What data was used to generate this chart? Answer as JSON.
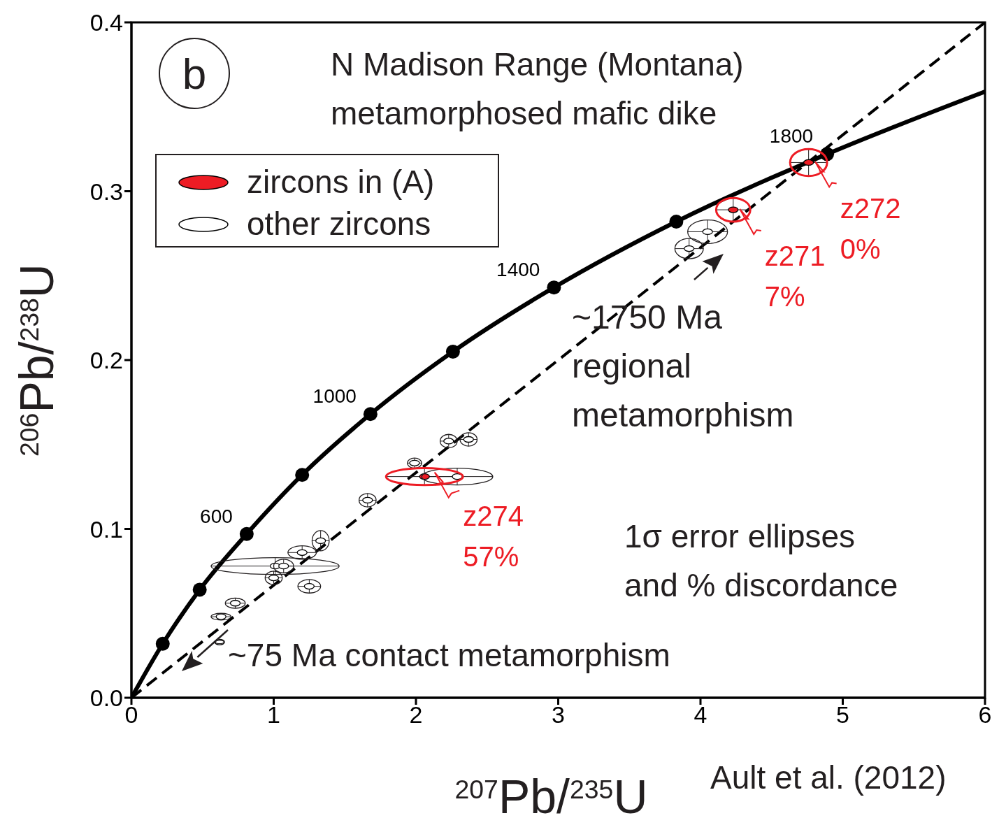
{
  "chart_data": {
    "type": "scatter",
    "title": "N Madison Range (Montana)",
    "subtitle": "metamorphosed mafic dike",
    "xlabel": "$^{207}$Pb/$^{235}$U",
    "ylabel": "$^{206}$Pb/$^{238}$U",
    "xlim": [
      0,
      6
    ],
    "ylim": [
      0,
      0.4
    ],
    "xticks": [
      0,
      1,
      2,
      3,
      4,
      5,
      6
    ],
    "yticks": [
      {
        "value": 0,
        "label": "0.0"
      },
      0.1,
      0.2,
      0.3,
      0.4
    ],
    "grid": false,
    "legend": "top left",
    "series": [
      {
        "type": "line",
        "color": "#000000",
        "marker": "none",
        "line_style": "solid",
        "x": [
          0,
          0.22,
          0.48,
          0.81,
          1.2,
          1.68,
          2.26,
          2.97,
          3.83,
          4.89,
          6.0
        ],
        "values": [
          0,
          0.032,
          0.064,
          0.097,
          0.132,
          0.168,
          0.205,
          0.243,
          0.282,
          0.322,
          0.359
        ]
      },
      {
        "type": "line",
        "color": "#000000",
        "marker": "none",
        "line_style": "dashed",
        "x": [
          0,
          6
        ],
        "values": [
          0,
          0.4
        ]
      },
      {
        "name": "other zircons",
        "color": "#ffffff",
        "x": [
          1.01,
          2.29,
          2.23,
          2.37,
          1.2,
          1.33,
          1.25,
          1.07,
          1.0,
          0.73,
          0.63,
          0.62,
          4.05,
          3.92,
          1.66,
          1.99
        ],
        "values": [
          0.078,
          0.131,
          0.152,
          0.153,
          0.086,
          0.093,
          0.066,
          0.078,
          0.071,
          0.056,
          0.048,
          0.033,
          0.276,
          0.266,
          0.117,
          0.139
        ],
        "xerrors": [
          0.45,
          0.25,
          0.06,
          0.06,
          0.1,
          0.06,
          0.08,
          0.07,
          0.06,
          0.07,
          0.07,
          0.03,
          0.14,
          0.1,
          0.06,
          0.05
        ],
        "errors": [
          0.005,
          0.005,
          0.004,
          0.004,
          0.004,
          0.006,
          0.004,
          0.004,
          0.004,
          0.003,
          0.002,
          0.001,
          0.007,
          0.006,
          0.004,
          0.003
        ]
      },
      {
        "name": "zircons in (A)",
        "color": "#ed1c24",
        "x": [
          2.06,
          4.23,
          4.76
        ],
        "values": [
          0.131,
          0.289,
          0.317
        ],
        "xerrors": [
          0.27,
          0.12,
          0.13
        ],
        "errors": [
          0.005,
          0.007,
          0.008
        ],
        "value_labels": [
          "z274\n57%",
          "z271\n7%",
          "z272\n0%"
        ]
      },
      {
        "color": "#000000",
        "marker": "circle",
        "x": [
          0.22,
          0.48,
          0.81,
          1.2,
          1.68,
          2.26,
          2.97,
          3.83,
          4.89
        ],
        "values": [
          0.032,
          0.064,
          0.097,
          0.132,
          0.168,
          0.205,
          0.243,
          0.282,
          0.322
        ]
      }
    ],
    "annotations": [
      "b",
      "~1750 Ma\nregional\nmetamorphism",
      "1σ error ellipses\nand % discordance",
      "~75 Ma contact metamorphism",
      "Ault et al. (2012)",
      {
        "text": "600",
        "x": 0.81,
        "y": 0.097
      },
      {
        "text": "1000",
        "x": 1.68,
        "y": 0.168
      },
      {
        "text": "1400",
        "x": 2.97,
        "y": 0.243
      },
      {
        "text": "1800",
        "x": 4.89,
        "y": 0.322
      }
    ]
  }
}
